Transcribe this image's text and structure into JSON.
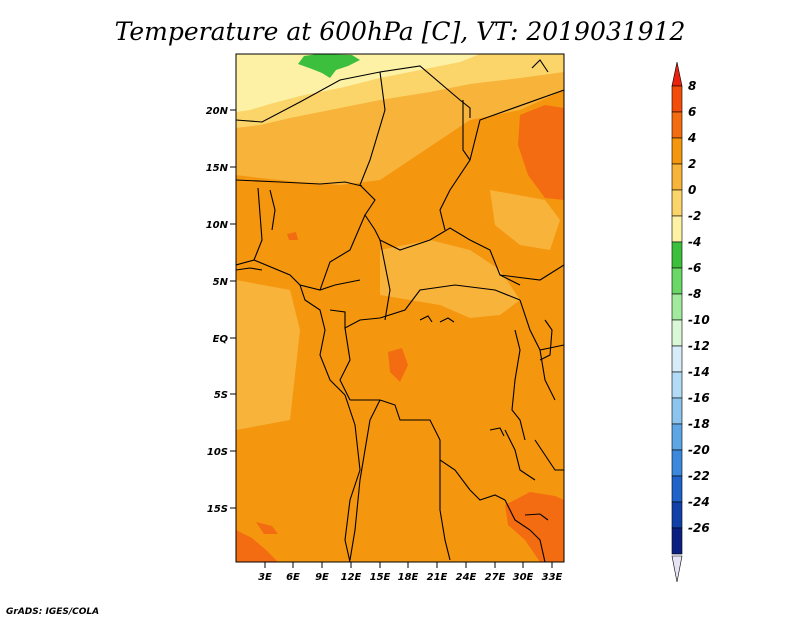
{
  "title": "Temperature at 600hPa [C], VT: 2019031912",
  "credit": "GrADS: IGES/COLA",
  "map": {
    "lat_labels": [
      "20N",
      "15N",
      "10N",
      "5N",
      "EQ",
      "5S",
      "10S",
      "15S"
    ],
    "lat_values": [
      20,
      15,
      10,
      5,
      0,
      -5,
      -10,
      -15
    ],
    "lon_labels": [
      "3E",
      "6E",
      "9E",
      "12E",
      "15E",
      "18E",
      "21E",
      "24E",
      "27E",
      "30E",
      "33E"
    ],
    "lon_values": [
      3,
      6,
      9,
      12,
      15,
      18,
      21,
      24,
      27,
      30,
      33
    ],
    "lat_range": [
      -20,
      24.5
    ],
    "lon_range": [
      0,
      34.2
    ]
  },
  "colorbar": {
    "labels": [
      "8",
      "6",
      "4",
      "2",
      "0",
      "-2",
      "-4",
      "-6",
      "-8",
      "-10",
      "-12",
      "-14",
      "-16",
      "-18",
      "-20",
      "-22",
      "-24",
      "-26"
    ],
    "colors": [
      "#e8220f",
      "#f24d0a",
      "#f36c12",
      "#f5960f",
      "#f8b33a",
      "#fbd569",
      "#fdf1a6",
      "#3cbf3c",
      "#69d866",
      "#a2eb9e",
      "#daf8d8",
      "#d6ecf9",
      "#b3dbf5",
      "#8cc4ee",
      "#5ea6e6",
      "#3b88dc",
      "#1f62c9",
      "#1040a8",
      "#0b1f80"
    ],
    "under_color": "#e6e3f5"
  }
}
